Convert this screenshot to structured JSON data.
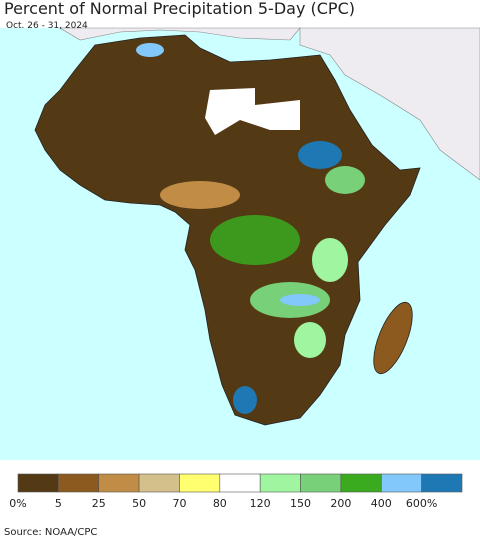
{
  "header": {
    "title": "Percent of Normal Precipitation 5-Day (CPC)",
    "subtitle": "Oct. 26 - 31, 2024"
  },
  "legend": {
    "colors": [
      "#543a14",
      "#8c5a1e",
      "#c08c46",
      "#d4c08a",
      "#ffff70",
      "#ffffff",
      "#a0f5a0",
      "#78d078",
      "#3aaa1e",
      "#82c8fa",
      "#1e78b4"
    ],
    "labels": [
      "0%",
      "5",
      "25",
      "50",
      "70",
      "80",
      "120",
      "150",
      "200",
      "400",
      "600%"
    ]
  },
  "source": "Source: NOAA/CPC"
}
